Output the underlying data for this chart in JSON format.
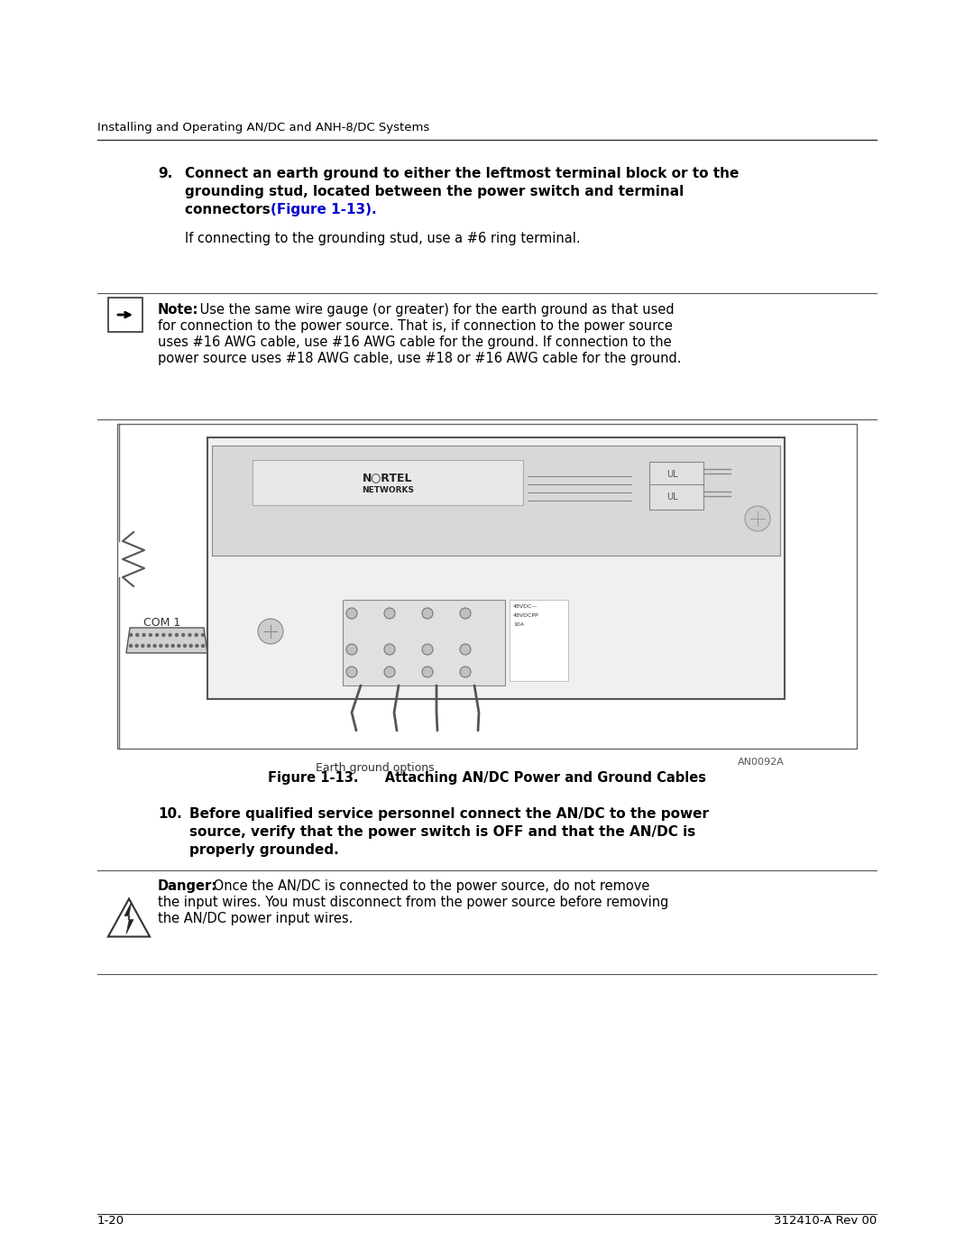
{
  "bg_color": "#ffffff",
  "header_text": "Installing and Operating AN/DC and ANH-8/DC Systems",
  "header_fontsize": 9.5,
  "step9_number": "9.",
  "step9_bold": "Connect an earth ground to either the leftmost terminal block or to the grounding stud, located between the power switch and terminal connectors ",
  "step9_link": "(Figure 1-13).",
  "step9_sub": "If connecting to the grounding stud, use a #6 ring terminal.",
  "note_label": "Note:",
  "note_text": " Use the same wire gauge (or greater) for the earth ground as that used for connection to the power source. That is, if connection to the power source uses #16 AWG cable, use #16 AWG cable for the ground. If connection to the power source uses #18 AWG cable, use #18 or #16 AWG cable for the ground.",
  "step10_number": "10.",
  "step10_bold": "Before qualified service personnel connect the AN/DC to the power source, verify that the power switch is OFF and that the AN/DC is properly grounded.",
  "danger_label": "Danger:",
  "danger_text": " Once the AN/DC is connected to the power source, do not remove the input wires. You must disconnect from the power source before removing the AN/DC power input wires.",
  "fig_caption": "Figure 1-13.  Attaching AN/DC Power and Ground Cables",
  "footer_left": "1-20",
  "footer_right": "312410-A Rev 00",
  "link_color": "#0000cc",
  "text_color": "#000000",
  "line_color": "#555555"
}
